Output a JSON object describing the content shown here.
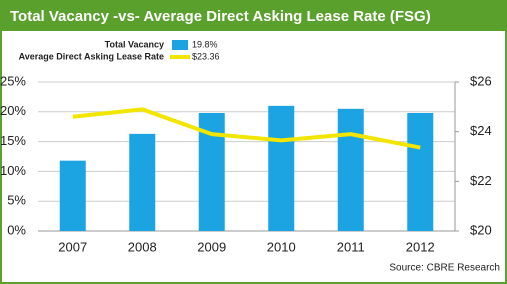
{
  "chart_data": {
    "type": "bar-line",
    "title": "Total Vacancy -vs- Average Direct Asking Lease Rate (FSG)",
    "source": "Source: CBRE Research",
    "categories": [
      "2007",
      "2008",
      "2009",
      "2010",
      "2011",
      "2012"
    ],
    "series": [
      {
        "name": "Total Vacancy",
        "legend_value": "19.8%",
        "type": "bar",
        "color": "#1ba3e2",
        "values": [
          11.8,
          16.3,
          19.8,
          21.0,
          20.5,
          19.8
        ]
      },
      {
        "name": "Average Direct Asking Lease Rate",
        "legend_value": "$23.36",
        "type": "line",
        "axis": "y2",
        "color": "#f2e600",
        "values": [
          24.6,
          24.9,
          23.9,
          23.65,
          23.9,
          23.36
        ]
      }
    ],
    "ylim": [
      0,
      25
    ],
    "yticks": [
      {
        "value": 0,
        "label": "0%"
      },
      {
        "value": 5,
        "label": "5%"
      },
      {
        "value": 10,
        "label": "10%"
      },
      {
        "value": 15,
        "label": "15%"
      },
      {
        "value": 20,
        "label": "20%"
      },
      {
        "value": 25,
        "label": "25%"
      }
    ],
    "y2lim": [
      20,
      26
    ],
    "y2ticks": [
      {
        "value": 20,
        "label": "$20"
      },
      {
        "value": 22,
        "label": "$22"
      },
      {
        "value": 24,
        "label": "$24"
      },
      {
        "value": 26,
        "label": "$26"
      }
    ],
    "grid": true
  }
}
